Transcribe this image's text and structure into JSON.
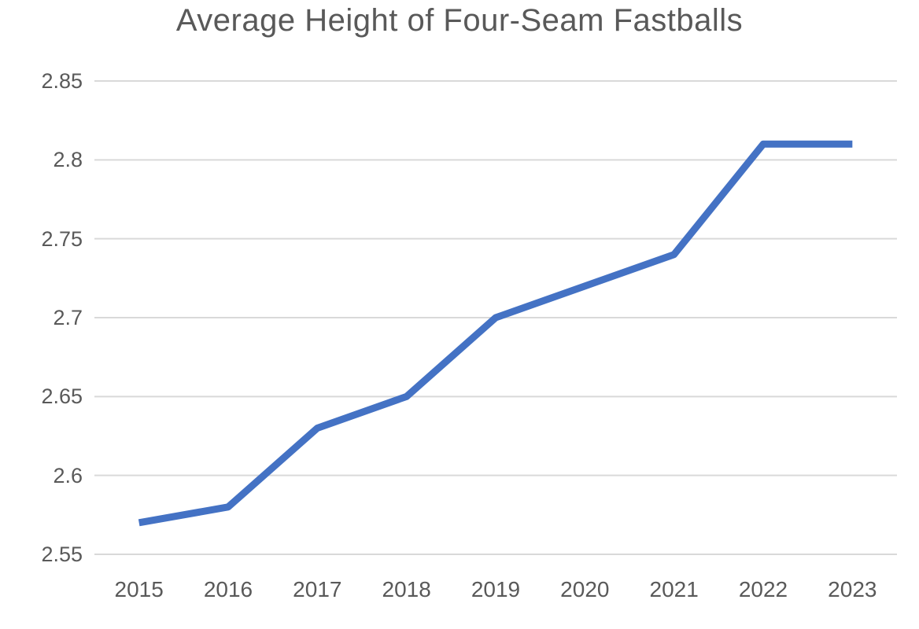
{
  "chart_data": {
    "type": "line",
    "title": "Average Height of Four-Seam Fastballs",
    "categories": [
      "2015",
      "2016",
      "2017",
      "2018",
      "2019",
      "2020",
      "2021",
      "2022",
      "2023"
    ],
    "values": [
      2.57,
      2.58,
      2.63,
      2.65,
      2.7,
      2.72,
      2.74,
      2.81,
      2.81
    ],
    "xlabel": "",
    "ylabel": "",
    "ylim": [
      2.55,
      2.85
    ],
    "y_tick_labels": [
      "2.85",
      "2.8",
      "2.75",
      "2.7",
      "2.65",
      "2.6",
      "2.55"
    ],
    "grid": "horizontal-only",
    "legend_position": "none",
    "colors": {
      "line": "#4472C4",
      "gridline": "#D9D9D9",
      "text": "#595959",
      "background": "#FFFFFF"
    }
  }
}
